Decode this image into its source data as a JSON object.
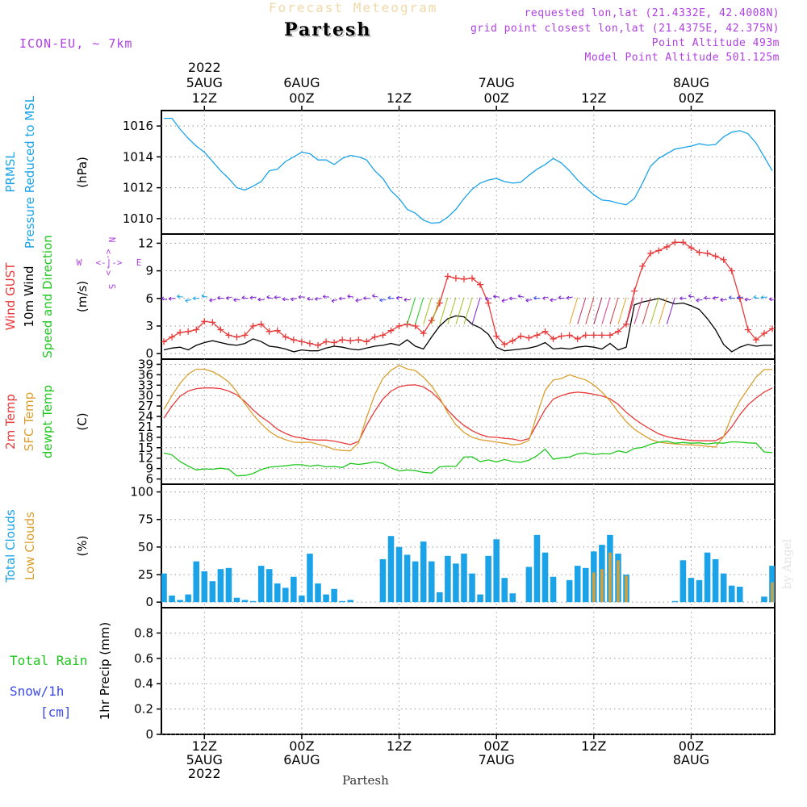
{
  "header": {
    "title": "Forecast Meteogram",
    "location": "Partesh",
    "model": "ICON-EU, ~ 7km",
    "requested": "requested lon,lat (21.4332E, 42.4008N)",
    "gridpoint": "grid point closest lon,lat (21.4375E, 42.375N)",
    "point_alt": "Point Altitude 493m",
    "model_alt": "Model Point Altitude 501.125m",
    "footer_location": "Partesh",
    "watermark": "by Angel"
  },
  "colors": {
    "pressure": "#1aa3e8",
    "gust": "#e83a3a",
    "wind": "#000000",
    "temp2m": "#e83a3a",
    "sfc": "#d9a030",
    "dewpt": "#1ec71e",
    "total_clouds": "#1aa3e8",
    "low_clouds": "#c9a248",
    "rain": "#1ec71e",
    "snow": "#3a4ae8",
    "info": "#b040e0",
    "title": "#f0d8a8"
  },
  "time_axis": {
    "top_labels": [
      {
        "lines": [
          "2022",
          "5AUG",
          "12Z"
        ],
        "h": 12
      },
      {
        "lines": [
          "6AUG",
          "00Z"
        ],
        "h": 24
      },
      {
        "lines": [
          "12Z"
        ],
        "h": 36
      },
      {
        "lines": [
          "7AUG",
          "00Z"
        ],
        "h": 48
      },
      {
        "lines": [
          "12Z"
        ],
        "h": 60
      },
      {
        "lines": [
          "8AUG",
          "00Z"
        ],
        "h": 72
      }
    ],
    "bottom_labels": [
      {
        "lines": [
          "12Z",
          "5AUG",
          "2022"
        ],
        "h": 12
      },
      {
        "lines": [
          "00Z",
          "6AUG"
        ],
        "h": 24
      },
      {
        "lines": [
          "12Z"
        ],
        "h": 36
      },
      {
        "lines": [
          "00Z",
          "7AUG"
        ],
        "h": 48
      },
      {
        "lines": [
          "12Z"
        ],
        "h": 60
      },
      {
        "lines": [
          "00Z",
          "8AUG"
        ],
        "h": 72
      }
    ]
  },
  "chart_data": [
    {
      "type": "line",
      "title": "PRMSL Pressure Reduced to MSL",
      "ylabel_lines": [
        {
          "text": "PRMSL",
          "color": "#1aa3e8"
        },
        {
          "text": "Pressure Reduced to MSL",
          "color": "#1aa3e8"
        }
      ],
      "unit": "(hPa)",
      "ylim": [
        1009,
        1017
      ],
      "yticks": [
        1010,
        1012,
        1014,
        1016
      ],
      "x_hours": [
        7,
        7.5,
        8,
        9,
        10,
        11,
        12,
        13,
        14,
        15,
        16,
        17,
        18,
        19,
        20,
        21,
        22,
        23,
        24,
        25,
        26,
        27,
        28,
        29,
        30,
        31,
        32,
        33,
        34,
        35,
        36,
        37,
        38,
        39,
        40,
        41,
        42,
        43,
        44,
        45,
        46,
        47,
        48,
        49,
        50,
        51,
        52,
        53,
        54,
        55,
        56,
        57,
        58,
        59,
        60,
        61,
        62,
        63,
        64,
        65,
        66,
        67,
        68,
        69,
        70,
        71,
        72,
        73,
        74,
        75,
        76,
        77,
        78,
        79,
        80,
        81,
        82
      ],
      "series": [
        {
          "name": "PRMSL",
          "color": "#1aa3e8",
          "values": [
            1016.5,
            1016.5,
            1016.5,
            1015.8,
            1015.2,
            1014.7,
            1014.3,
            1013.7,
            1013.1,
            1012.6,
            1012.0,
            1011.85,
            1012.1,
            1012.4,
            1013.1,
            1013.2,
            1013.7,
            1014.0,
            1014.3,
            1014.2,
            1013.8,
            1013.8,
            1013.5,
            1013.9,
            1014.1,
            1014.0,
            1013.8,
            1013.1,
            1012.6,
            1011.8,
            1011.3,
            1010.6,
            1010.35,
            1009.9,
            1009.7,
            1009.75,
            1010.1,
            1010.6,
            1011.3,
            1011.9,
            1012.3,
            1012.5,
            1012.6,
            1012.4,
            1012.3,
            1012.35,
            1012.8,
            1013.2,
            1013.5,
            1013.9,
            1013.6,
            1013.1,
            1012.5,
            1012.0,
            1011.55,
            1011.2,
            1011.15,
            1011.0,
            1010.9,
            1011.3,
            1012.3,
            1013.4,
            1013.9,
            1014.2,
            1014.5,
            1014.6,
            1014.7,
            1014.85,
            1014.75,
            1014.8,
            1015.3,
            1015.6,
            1015.7,
            1015.5,
            1014.9,
            1014.0,
            1013.1
          ]
        }
      ]
    },
    {
      "type": "line",
      "title": "Wind GUST / 10m Wind Speed and Direction",
      "ylabel_lines": [
        {
          "text": "Wind GUST",
          "color": "#e83a3a"
        },
        {
          "text": "10m Wind",
          "color": "#000000"
        },
        {
          "text": "Speed and Direction",
          "color": "#1ec71e"
        }
      ],
      "unit": "(m/s)",
      "compass": {
        "n": "N",
        "s": "S",
        "e": "E",
        "w": "W"
      },
      "ylim": [
        -0.6,
        13.0
      ],
      "yticks": [
        0,
        3,
        6,
        9,
        12
      ],
      "x_hours": [
        7,
        8,
        9,
        10,
        11,
        12,
        13,
        14,
        15,
        16,
        17,
        18,
        19,
        20,
        21,
        22,
        23,
        24,
        25,
        26,
        27,
        28,
        29,
        30,
        31,
        32,
        33,
        34,
        35,
        36,
        37,
        38,
        39,
        40,
        41,
        42,
        43,
        44,
        45,
        46,
        47,
        48,
        49,
        50,
        51,
        52,
        53,
        54,
        55,
        56,
        57,
        58,
        59,
        60,
        61,
        62,
        63,
        64,
        65,
        66,
        67,
        68,
        69,
        70,
        71,
        72,
        73,
        74,
        75,
        76,
        77,
        78,
        79,
        80,
        81,
        82
      ],
      "series": [
        {
          "name": "Wind GUST",
          "color": "#e83a3a",
          "values": [
            1.3,
            1.8,
            2.3,
            2.4,
            2.6,
            3.5,
            3.4,
            2.6,
            2.0,
            1.8,
            2.0,
            3.0,
            3.2,
            2.4,
            2.5,
            1.8,
            1.5,
            1.3,
            1.1,
            0.9,
            1.3,
            1.2,
            1.5,
            1.4,
            1.5,
            1.3,
            1.8,
            2.0,
            2.5,
            3.0,
            3.2,
            3.0,
            2.2,
            3.6,
            5.5,
            8.4,
            8.2,
            8.1,
            8.2,
            7.5,
            5.5,
            1.9,
            1.0,
            1.4,
            1.9,
            1.7,
            2.0,
            2.4,
            1.6,
            1.9,
            2.0,
            1.6,
            2.0,
            2.0,
            2.0,
            2.0,
            2.4,
            3.2,
            6.8,
            9.5,
            10.9,
            11.2,
            11.6,
            12.1,
            12.1,
            11.5,
            11.0,
            10.9,
            10.6,
            10.2,
            9.0,
            6.0,
            2.6,
            1.5,
            2.2,
            2.7
          ]
        },
        {
          "name": "10m Wind",
          "color": "#000000",
          "values": [
            0.4,
            0.6,
            0.7,
            0.4,
            0.9,
            1.2,
            1.4,
            1.2,
            1.0,
            0.9,
            1.1,
            1.6,
            1.3,
            0.8,
            0.7,
            0.5,
            0.2,
            0.4,
            0.3,
            0.3,
            0.6,
            0.8,
            0.7,
            0.5,
            0.4,
            0.6,
            0.8,
            0.9,
            1.1,
            0.9,
            1.5,
            0.8,
            0.5,
            1.8,
            3.0,
            3.8,
            4.1,
            4.0,
            3.2,
            2.8,
            2.1,
            0.7,
            0.3,
            0.4,
            0.5,
            0.6,
            0.8,
            1.2,
            0.5,
            0.6,
            0.5,
            0.7,
            0.8,
            0.7,
            0.5,
            1.1,
            0.4,
            0.7,
            5.3,
            5.6,
            5.8,
            6.0,
            5.7,
            5.4,
            5.5,
            5.2,
            4.8,
            3.8,
            2.6,
            1.0,
            0.2,
            0.7,
            1.0,
            0.8,
            0.9,
            0.9
          ]
        }
      ]
    },
    {
      "type": "line",
      "title": "2m Temp / SFC Temp / dewpt Temp",
      "ylabel_lines": [
        {
          "text": "2m Temp",
          "color": "#e83a3a"
        },
        {
          "text": "SFC Temp",
          "color": "#d9a030"
        },
        {
          "text": "dewpt Temp",
          "color": "#1ec71e"
        }
      ],
      "unit": "(C)",
      "ylim": [
        4.5,
        40.5
      ],
      "yticks": [
        6,
        9,
        12,
        15,
        18,
        21,
        24,
        27,
        30,
        33,
        36,
        39
      ],
      "x_hours": [
        7,
        8,
        9,
        10,
        11,
        12,
        13,
        14,
        15,
        16,
        17,
        18,
        19,
        20,
        21,
        22,
        23,
        24,
        25,
        26,
        27,
        28,
        29,
        30,
        31,
        32,
        33,
        34,
        35,
        36,
        37,
        38,
        39,
        40,
        41,
        42,
        43,
        44,
        45,
        46,
        47,
        48,
        49,
        50,
        51,
        52,
        53,
        54,
        55,
        56,
        57,
        58,
        59,
        60,
        61,
        62,
        63,
        64,
        65,
        66,
        67,
        68,
        69,
        70,
        71,
        72,
        73,
        74,
        75,
        76,
        77,
        78,
        79,
        80,
        81,
        82
      ],
      "series": [
        {
          "name": "2m Temp",
          "color": "#e83a3a",
          "values": [
            23.5,
            27,
            29.8,
            31.3,
            32.0,
            32.2,
            32.2,
            32.0,
            31.3,
            30.2,
            28.3,
            25.9,
            23.9,
            22.3,
            20.3,
            19.1,
            18.2,
            17.8,
            17.3,
            17.2,
            17.2,
            16.9,
            16.4,
            15.9,
            16.8,
            21.5,
            25.5,
            29,
            31.3,
            32.5,
            33.0,
            33.1,
            32.5,
            31.0,
            28.8,
            25.8,
            23.4,
            21.4,
            19.9,
            18.8,
            18.1,
            18.0,
            17.7,
            17.5,
            17.0,
            17.6,
            21.8,
            26.0,
            29.0,
            30.0,
            30.7,
            31.0,
            30.8,
            30.4,
            29.9,
            29.1,
            27.5,
            25.2,
            23.3,
            21.7,
            20.3,
            19.0,
            18.2,
            17.7,
            17.4,
            17.1,
            17.0,
            17.0,
            17.0,
            18.2,
            21.0,
            24.5,
            27.3,
            29.3,
            31.0,
            32.2
          ]
        },
        {
          "name": "SFC Temp",
          "color": "#d9a030",
          "values": [
            26,
            30,
            33.5,
            36.2,
            37.6,
            37.6,
            36.9,
            35.6,
            33.9,
            31.1,
            27.7,
            24.5,
            21.9,
            19.7,
            18.2,
            17.3,
            16.6,
            16.5,
            16.6,
            16.0,
            15.4,
            14.5,
            14.2,
            14.1,
            16.4,
            23.7,
            30.3,
            34.9,
            37.3,
            38.7,
            37.7,
            37.2,
            35.3,
            32.8,
            29.4,
            25.0,
            21.6,
            19.4,
            18.0,
            17.3,
            17.0,
            16.6,
            16.3,
            15.8,
            16.1,
            17.1,
            24.5,
            31.5,
            34.5,
            34.9,
            36.0,
            35.2,
            34.5,
            33.1,
            31.0,
            28.5,
            25.3,
            22.5,
            20.3,
            18.8,
            17.4,
            16.6,
            16.3,
            16.1,
            15.9,
            15.8,
            15.7,
            15.4,
            15.2,
            18.2,
            24.1,
            28.5,
            31.9,
            35.3,
            37.5,
            37.5
          ]
        },
        {
          "name": "dewpt Temp",
          "color": "#1ec71e",
          "values": [
            13.5,
            12.9,
            11.0,
            9.7,
            8.6,
            8.9,
            8.8,
            9.1,
            8.8,
            6.9,
            7.0,
            7.6,
            8.7,
            9.4,
            9.6,
            9.8,
            10.1,
            10.1,
            9.7,
            10.0,
            9.5,
            9.6,
            9.3,
            10.5,
            10.2,
            10.5,
            10.9,
            10.5,
            9.2,
            8.3,
            8.6,
            8.4,
            7.9,
            7.7,
            9.5,
            9.7,
            9.6,
            12.3,
            12.4,
            11.0,
            11.5,
            10.9,
            11.6,
            11.0,
            10.8,
            11.4,
            12.7,
            14.6,
            11.7,
            12.1,
            12.3,
            13.2,
            13.5,
            13.0,
            13.3,
            13.2,
            14.1,
            13.6,
            14.8,
            15.1,
            16.0,
            16.6,
            16.9,
            16.3,
            16.5,
            16.3,
            16.4,
            16.1,
            16.4,
            16.3,
            16.7,
            16.6,
            16.4,
            16.3,
            13.8,
            13.6
          ]
        }
      ]
    },
    {
      "type": "bar",
      "title": "Total Clouds / Low Clouds",
      "ylabel_lines": [
        {
          "text": "Total Clouds",
          "color": "#1aa3e8"
        },
        {
          "text": "Low Clouds",
          "color": "#d9a030"
        }
      ],
      "unit": "(%)",
      "ylim": [
        -5,
        107
      ],
      "yticks": [
        0,
        25,
        50,
        75,
        100
      ],
      "x_hours": [
        7,
        8,
        9,
        10,
        11,
        12,
        13,
        14,
        15,
        16,
        17,
        18,
        19,
        20,
        21,
        22,
        23,
        24,
        25,
        26,
        27,
        28,
        29,
        30,
        31,
        32,
        33,
        34,
        35,
        36,
        37,
        38,
        39,
        40,
        41,
        42,
        43,
        44,
        45,
        46,
        47,
        48,
        49,
        50,
        51,
        52,
        53,
        54,
        55,
        56,
        57,
        58,
        59,
        60,
        61,
        62,
        63,
        64,
        65,
        66,
        67,
        68,
        69,
        70,
        71,
        72,
        73,
        74,
        75,
        76,
        77,
        78,
        79,
        80,
        81,
        82
      ],
      "series": [
        {
          "name": "Total Clouds",
          "color": "#1aa3e8",
          "values": [
            26,
            6,
            2,
            7,
            37,
            28,
            19,
            30,
            31,
            4,
            2,
            1,
            33,
            30,
            17,
            13,
            23,
            6,
            44,
            17,
            7,
            12,
            1,
            2,
            0,
            0,
            0,
            39,
            60,
            50,
            43,
            37,
            55,
            37,
            9,
            42,
            35,
            44,
            26,
            7,
            42,
            57,
            22,
            8,
            0,
            32,
            61,
            45,
            23,
            0,
            20,
            33,
            31,
            46,
            52,
            61,
            44,
            25,
            0,
            0,
            0,
            0,
            0,
            1,
            38,
            22,
            20,
            45,
            39,
            26,
            15,
            14,
            0,
            0,
            5,
            33
          ]
        },
        {
          "name": "Low Clouds",
          "color": "#c9a248",
          "values": [
            0,
            0,
            0,
            0,
            0,
            0,
            0,
            0,
            0,
            0,
            0,
            0,
            0,
            0,
            0,
            0,
            0,
            0,
            0,
            0,
            0,
            0,
            0,
            0,
            0,
            0,
            0,
            0,
            0,
            0,
            0,
            0,
            0,
            0,
            0,
            0,
            0,
            0,
            0,
            0,
            0,
            0,
            0,
            0,
            0,
            0,
            0,
            0,
            0,
            0,
            0,
            0,
            0,
            27,
            30,
            45,
            38,
            24,
            0,
            0,
            0,
            0,
            0,
            0,
            0,
            0,
            0,
            0,
            0,
            0,
            0,
            0,
            0,
            0,
            0,
            18
          ]
        }
      ]
    },
    {
      "type": "bar",
      "title": "1hr Precip",
      "ylabel_lines": [
        {
          "text": "Total  Rain",
          "color": "#1ec71e"
        },
        {
          "text": "Snow/1h",
          "color": "#3a4ae8"
        },
        {
          "text": "[cm]",
          "color": "#3a4ae8"
        }
      ],
      "unit": "1hr Precip (mm)",
      "ylim": [
        0,
        1.0
      ],
      "yticks": [
        0,
        0.2,
        0.4,
        0.6,
        0.8
      ],
      "series": [
        {
          "name": "Total Rain",
          "color": "#1ec71e",
          "values": []
        }
      ]
    }
  ]
}
